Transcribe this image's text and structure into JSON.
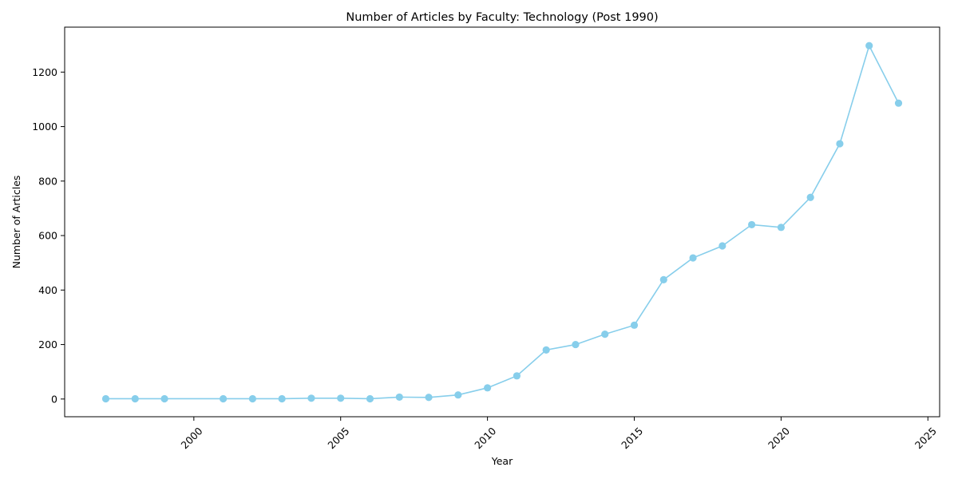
{
  "chart_data": {
    "type": "line",
    "title": "Number of Articles by Faculty: Technology (Post 1990)",
    "xlabel": "Year",
    "ylabel": "Number of Articles",
    "xlim": [
      1995.6,
      2025.4
    ],
    "ylim": [
      -65,
      1365
    ],
    "xticks": [
      2000,
      2005,
      2010,
      2015,
      2020,
      2025
    ],
    "yticks": [
      0,
      200,
      400,
      600,
      800,
      1000,
      1200
    ],
    "xtick_rotation": 45,
    "grid": false,
    "line_color": "#87CEEB",
    "marker": "circle",
    "x": [
      1997,
      1998,
      1999,
      2001,
      2002,
      2003,
      2004,
      2005,
      2006,
      2007,
      2008,
      2009,
      2010,
      2011,
      2012,
      2013,
      2014,
      2015,
      2016,
      2017,
      2018,
      2019,
      2020,
      2021,
      2022,
      2023,
      2024
    ],
    "y": [
      1,
      1,
      1,
      1,
      1,
      1,
      3,
      3,
      1,
      7,
      6,
      15,
      41,
      85,
      180,
      200,
      238,
      271,
      438,
      518,
      562,
      640,
      630,
      740,
      937,
      1297,
      1086
    ]
  }
}
